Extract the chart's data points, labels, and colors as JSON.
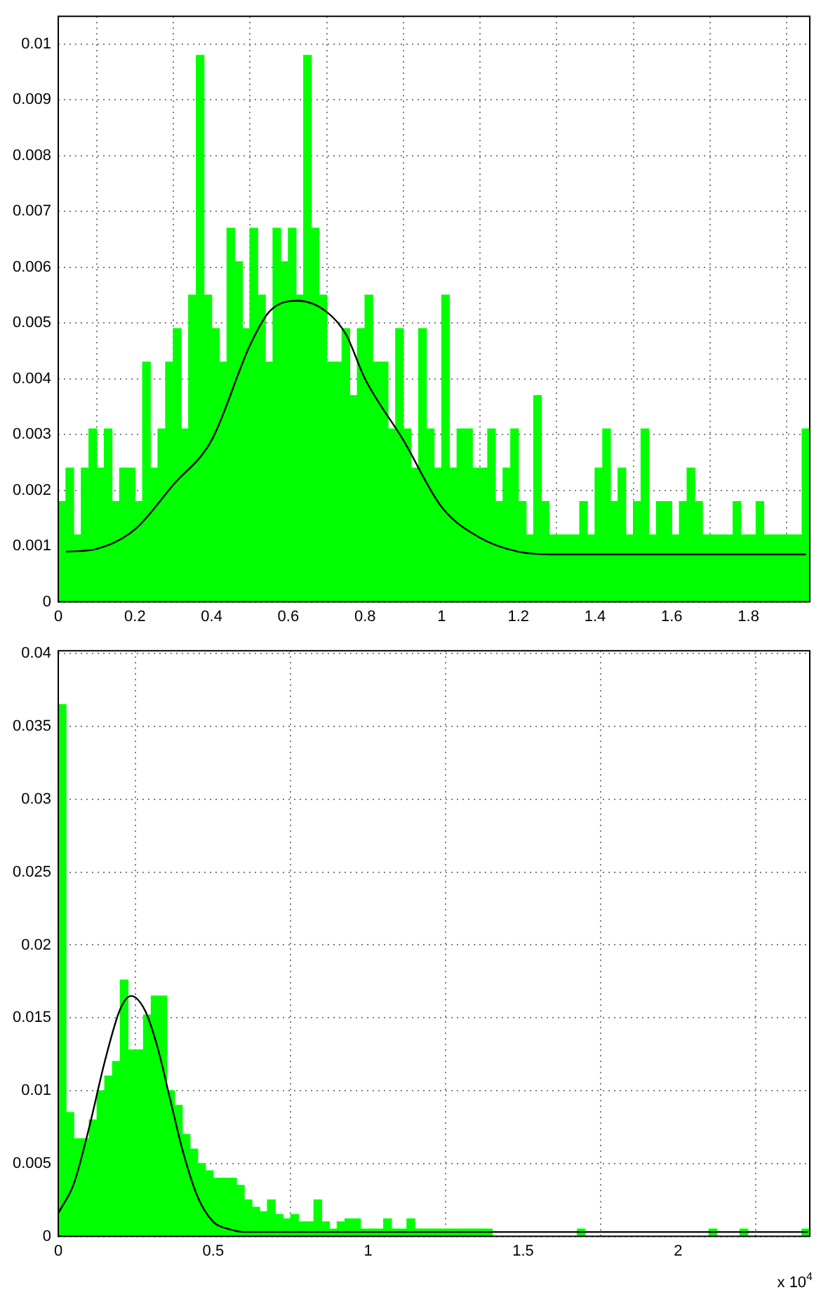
{
  "chart_data": [
    {
      "type": "histogram",
      "xlim": [
        0,
        1.96
      ],
      "xticks": [
        0,
        0.2,
        0.4,
        0.6,
        0.8,
        1,
        1.2,
        1.4,
        1.6,
        1.8
      ],
      "ylim": [
        0,
        0.0105
      ],
      "yticks": [
        0,
        0.001,
        0.002,
        0.003,
        0.004,
        0.005,
        0.006,
        0.007,
        0.008,
        0.009,
        0.01
      ],
      "grid": true,
      "legend": false,
      "series": [
        {
          "color": "#00ff00",
          "bins": [
            0,
            0.02,
            0.04,
            0.06,
            0.08,
            0.1,
            0.12,
            0.14,
            0.16,
            0.18,
            0.2,
            0.22,
            0.24,
            0.26,
            0.28,
            0.3,
            0.32,
            0.34,
            0.36,
            0.38,
            0.4,
            0.42,
            0.44,
            0.46,
            0.48,
            0.5,
            0.52,
            0.54,
            0.56,
            0.58,
            0.6,
            0.62,
            0.64,
            0.66,
            0.68,
            0.7,
            0.72,
            0.74,
            0.76,
            0.78,
            0.8,
            0.82,
            0.84,
            0.86,
            0.88,
            0.9,
            0.92,
            0.94,
            0.96,
            0.98,
            1,
            1.02,
            1.04,
            1.06,
            1.08,
            1.1,
            1.12,
            1.14,
            1.16,
            1.18,
            1.2,
            1.22,
            1.24,
            1.26,
            1.28,
            1.3,
            1.32,
            1.34,
            1.36,
            1.38,
            1.4,
            1.42,
            1.44,
            1.46,
            1.48,
            1.5,
            1.52,
            1.54,
            1.56,
            1.58,
            1.6,
            1.62,
            1.64,
            1.66,
            1.68,
            1.7,
            1.72,
            1.74,
            1.76,
            1.78,
            1.8,
            1.82,
            1.84,
            1.86,
            1.88,
            1.9,
            1.92,
            1.94,
            1.96
          ],
          "values": [
            0.0018,
            0.0024,
            0.0012,
            0.0024,
            0.0031,
            0.0024,
            0.0031,
            0.0018,
            0.0024,
            0.0024,
            0.0018,
            0.0043,
            0.0024,
            0.0031,
            0.0043,
            0.0049,
            0.0031,
            0.0055,
            0.0098,
            0.0055,
            0.0049,
            0.0043,
            0.0067,
            0.0061,
            0.0049,
            0.0067,
            0.0055,
            0.0043,
            0.0067,
            0.0061,
            0.0067,
            0.0055,
            0.0098,
            0.0067,
            0.0055,
            0.0043,
            0.0043,
            0.0049,
            0.0037,
            0.0049,
            0.0055,
            0.0043,
            0.0043,
            0.0031,
            0.0049,
            0.0031,
            0.0024,
            0.0049,
            0.0031,
            0.0024,
            0.0055,
            0.0024,
            0.0031,
            0.0031,
            0.0024,
            0.0024,
            0.0031,
            0.0018,
            0.0024,
            0.0031,
            0.0018,
            0.0012,
            0.0037,
            0.0018,
            0.0012,
            0.0012,
            0.0012,
            0.0012,
            0.0018,
            0.0012,
            0.0024,
            0.0031,
            0.0018,
            0.0024,
            0.0012,
            0.0018,
            0.0031,
            0.0012,
            0.0018,
            0.0018,
            0.0012,
            0.0018,
            0.0024,
            0.0018,
            0.0012,
            0.0012,
            0.0012,
            0.0012,
            0.0018,
            0.0012,
            0.0012,
            0.0018,
            0.0012,
            0.0012,
            0.0012,
            0.0012,
            0.0012,
            0.0031
          ]
        },
        {
          "type": "line",
          "color": "#000000",
          "x": [
            0.02,
            0.1,
            0.2,
            0.3,
            0.4,
            0.5,
            0.55,
            0.625,
            0.7,
            0.75,
            0.8,
            0.9,
            1,
            1.1,
            1.2,
            1.3,
            1.95
          ],
          "values": [
            0.0009,
            0.00095,
            0.0013,
            0.0021,
            0.0029,
            0.0046,
            0.0052,
            0.0054,
            0.0052,
            0.0048,
            0.004,
            0.0029,
            0.0017,
            0.00115,
            0.0009,
            0.00085,
            0.00085
          ]
        }
      ]
    },
    {
      "type": "histogram",
      "xlim": [
        0,
        2.425
      ],
      "xticks": [
        0,
        0.5,
        1,
        1.5,
        2
      ],
      "ylim": [
        0,
        0.0402
      ],
      "yticks": [
        0,
        0.005,
        0.01,
        0.015,
        0.02,
        0.025,
        0.03,
        0.035,
        0.04
      ],
      "grid": true,
      "legend": false,
      "annotations": [
        "x 10$^{4}$"
      ],
      "series": [
        {
          "color": "#00ff00",
          "bins": [
            0,
            0.025,
            0.05,
            0.075,
            0.1,
            0.125,
            0.15,
            0.175,
            0.2,
            0.225,
            0.25,
            0.275,
            0.3,
            0.325,
            0.35,
            0.375,
            0.4,
            0.425,
            0.45,
            0.475,
            0.5,
            0.525,
            0.55,
            0.575,
            0.6,
            0.625,
            0.65,
            0.675,
            0.7,
            0.725,
            0.75,
            0.775,
            0.8,
            0.825,
            0.85,
            0.875,
            0.9,
            0.925,
            0.95,
            0.975,
            1,
            1.025,
            1.05,
            1.075,
            1.1,
            1.125,
            1.15,
            1.175,
            1.2,
            1.225,
            1.25,
            1.275,
            1.3,
            1.325,
            1.35,
            1.375,
            1.4,
            1.425,
            1.45,
            1.475,
            1.5,
            1.525,
            1.55,
            1.575,
            1.6,
            1.625,
            1.65,
            1.675,
            1.7,
            1.725,
            1.75,
            1.775,
            1.8,
            1.825,
            1.85,
            1.875,
            1.9,
            1.925,
            1.95,
            1.975,
            2,
            2.025,
            2.05,
            2.075,
            2.1,
            2.125,
            2.15,
            2.175,
            2.2,
            2.225,
            2.25,
            2.275,
            2.3,
            2.325,
            2.35,
            2.375,
            2.4,
            2.425
          ],
          "values": [
            0.0365,
            0.0085,
            0.0067,
            0.0067,
            0.008,
            0.01,
            0.011,
            0.012,
            0.0176,
            0.0128,
            0.0128,
            0.0152,
            0.0165,
            0.0165,
            0.01,
            0.009,
            0.007,
            0.006,
            0.005,
            0.0045,
            0.004,
            0.004,
            0.004,
            0.0035,
            0.0025,
            0.002,
            0.0017,
            0.0025,
            0.0015,
            0.0012,
            0.0015,
            0.001,
            0.001,
            0.0025,
            0.001,
            0.0005,
            0.001,
            0.0012,
            0.0012,
            0.0005,
            0.0005,
            0.0005,
            0.0012,
            0.0005,
            0.0005,
            0.0012,
            0.0005,
            0.0005,
            0.0005,
            0.0005,
            0.0005,
            0.0005,
            0.0005,
            0.0005,
            0.0005,
            0.0005,
            0,
            0,
            0,
            0,
            0,
            0,
            0,
            0,
            0,
            0,
            0,
            0.0005,
            0,
            0,
            0,
            0,
            0,
            0,
            0,
            0,
            0,
            0,
            0,
            0,
            0,
            0,
            0,
            0,
            0.0005,
            0,
            0,
            0,
            0.0005,
            0,
            0,
            0,
            0,
            0,
            0,
            0,
            0.0005
          ]
        },
        {
          "type": "line",
          "color": "#000000",
          "x": [
            0,
            0.05,
            0.1,
            0.15,
            0.2,
            0.235,
            0.28,
            0.32,
            0.36,
            0.4,
            0.45,
            0.5,
            0.55,
            0.6,
            2.42
          ],
          "values": [
            0.0016,
            0.0036,
            0.0075,
            0.012,
            0.0156,
            0.0165,
            0.0155,
            0.013,
            0.0095,
            0.006,
            0.0027,
            0.001,
            0.0005,
            0.0003,
            0.0003
          ]
        }
      ]
    }
  ]
}
